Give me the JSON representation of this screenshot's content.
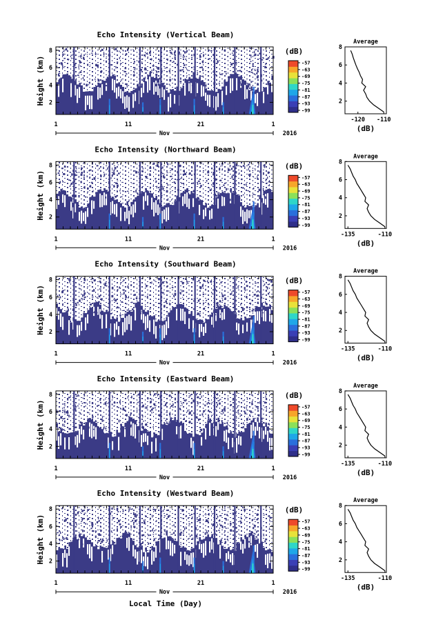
{
  "chart_data": [
    {
      "type": "heatmap",
      "title": "Echo Intensity (Vertical Beam)",
      "ylabel": "Height (km)",
      "month_label": "Nov",
      "year_label": "2016",
      "yticks": [
        "2",
        "4",
        "6",
        "8"
      ],
      "xticks": [
        "1",
        "11",
        "21",
        "1"
      ],
      "colorbar_unit": "(dB)",
      "colorbar_ticks": [
        "-57",
        "-63",
        "-69",
        "-75",
        "-81",
        "-87",
        "-93",
        "-99"
      ],
      "profile": {
        "title": "Average",
        "xlabel": "(dB)",
        "xticks": [
          "-120",
          "-110"
        ],
        "yticks": [
          "2",
          "4",
          "6",
          "8"
        ],
        "xlim": [
          -125,
          -109
        ],
        "ylim": [
          0.6,
          8
        ],
        "heights": [
          0.8,
          1.2,
          1.6,
          2.0,
          2.4,
          2.8,
          3.2,
          3.6,
          4.0,
          4.4,
          4.8,
          5.2,
          5.6,
          6.0,
          6.4,
          6.8,
          7.2,
          7.6
        ],
        "values": [
          -110.0,
          -112.0,
          -114.0,
          -115.5,
          -116.5,
          -117.0,
          -117.8,
          -117.0,
          -118.5,
          -118.2,
          -119.0,
          -119.5,
          -120.2,
          -120.8,
          -121.3,
          -121.8,
          -122.2,
          -122.8
        ]
      }
    },
    {
      "type": "heatmap",
      "title": "Echo Intensity (Northward Beam)",
      "ylabel": "Height (km)",
      "month_label": "Nov",
      "year_label": "2016",
      "yticks": [
        "2",
        "4",
        "6",
        "8"
      ],
      "xticks": [
        "1",
        "11",
        "21",
        "1"
      ],
      "colorbar_unit": "(dB)",
      "colorbar_ticks": [
        "-57",
        "-63",
        "-69",
        "-75",
        "-81",
        "-87",
        "-93",
        "-99"
      ],
      "profile": {
        "title": "Average",
        "xlabel": "(dB)",
        "xticks": [
          "-135",
          "-110"
        ],
        "yticks": [
          "2",
          "4",
          "6",
          "8"
        ],
        "xlim": [
          -137,
          -109
        ],
        "ylim": [
          0.6,
          8
        ],
        "heights": [
          0.8,
          1.2,
          1.6,
          2.0,
          2.4,
          2.8,
          3.2,
          3.6,
          4.0,
          4.4,
          4.8,
          5.2,
          5.6,
          6.0,
          6.4,
          6.8,
          7.2,
          7.6
        ],
        "values": [
          -110.0,
          -113.5,
          -117.0,
          -119.5,
          -121.0,
          -122.0,
          -121.0,
          -123.5,
          -123.0,
          -124.5,
          -126.0,
          -127.5,
          -129.0,
          -130.0,
          -131.5,
          -132.5,
          -133.5,
          -135.0
        ]
      }
    },
    {
      "type": "heatmap",
      "title": "Echo Intensity (Southward Beam)",
      "ylabel": "Height (km)",
      "month_label": "Nov",
      "year_label": "2016",
      "yticks": [
        "2",
        "4",
        "6",
        "8"
      ],
      "xticks": [
        "1",
        "11",
        "21",
        "1"
      ],
      "colorbar_unit": "(dB)",
      "colorbar_ticks": [
        "-57",
        "-63",
        "-69",
        "-75",
        "-81",
        "-87",
        "-93",
        "-99"
      ],
      "profile": {
        "title": "Average",
        "xlabel": "(dB)",
        "xticks": [
          "-135",
          "-110"
        ],
        "yticks": [
          "2",
          "4",
          "6",
          "8"
        ],
        "xlim": [
          -137,
          -109
        ],
        "ylim": [
          0.6,
          8
        ],
        "heights": [
          0.8,
          1.2,
          1.6,
          2.0,
          2.4,
          2.8,
          3.2,
          3.6,
          4.0,
          4.4,
          4.8,
          5.2,
          5.6,
          6.0,
          6.4,
          6.8,
          7.2,
          7.6
        ],
        "values": [
          -110.0,
          -113.5,
          -117.0,
          -119.5,
          -121.0,
          -122.0,
          -121.0,
          -123.5,
          -123.0,
          -124.5,
          -126.0,
          -127.5,
          -129.0,
          -130.0,
          -131.5,
          -132.5,
          -133.5,
          -135.0
        ]
      }
    },
    {
      "type": "heatmap",
      "title": "Echo Intensity (Eastward Beam)",
      "ylabel": "Height (km)",
      "month_label": "Nov",
      "year_label": "2016",
      "yticks": [
        "2",
        "4",
        "6",
        "8"
      ],
      "xticks": [
        "1",
        "11",
        "21",
        "1"
      ],
      "colorbar_unit": "(dB)",
      "colorbar_ticks": [
        "-57",
        "-63",
        "-69",
        "-75",
        "-81",
        "-87",
        "-93",
        "-99"
      ],
      "profile": {
        "title": "Average",
        "xlabel": "(dB)",
        "xticks": [
          "-135",
          "-110"
        ],
        "yticks": [
          "2",
          "4",
          "6",
          "8"
        ],
        "xlim": [
          -137,
          -109
        ],
        "ylim": [
          0.6,
          8
        ],
        "heights": [
          0.8,
          1.2,
          1.6,
          2.0,
          2.4,
          2.8,
          3.2,
          3.6,
          4.0,
          4.4,
          4.8,
          5.2,
          5.6,
          6.0,
          6.4,
          6.8,
          7.2,
          7.6
        ],
        "values": [
          -110.0,
          -113.5,
          -117.0,
          -119.5,
          -121.0,
          -122.0,
          -121.0,
          -123.5,
          -123.0,
          -124.5,
          -126.0,
          -127.5,
          -129.0,
          -130.0,
          -131.5,
          -132.5,
          -133.5,
          -135.0
        ]
      }
    },
    {
      "type": "heatmap",
      "title": "Echo Intensity (Westward Beam)",
      "ylabel": "Height (km)",
      "month_label": "Nov",
      "year_label": "2016",
      "yticks": [
        "2",
        "4",
        "6",
        "8"
      ],
      "xticks": [
        "1",
        "11",
        "21",
        "1"
      ],
      "colorbar_unit": "(dB)",
      "colorbar_ticks": [
        "-57",
        "-63",
        "-69",
        "-75",
        "-81",
        "-87",
        "-93",
        "-99"
      ],
      "profile": {
        "title": "Average",
        "xlabel": "(dB)",
        "xticks": [
          "-135",
          "-110"
        ],
        "yticks": [
          "2",
          "4",
          "6",
          "8"
        ],
        "xlim": [
          -137,
          -109
        ],
        "ylim": [
          0.6,
          8
        ],
        "heights": [
          0.8,
          1.2,
          1.6,
          2.0,
          2.4,
          2.8,
          3.2,
          3.6,
          4.0,
          4.4,
          4.8,
          5.2,
          5.6,
          6.0,
          6.4,
          6.8,
          7.2,
          7.6
        ],
        "values": [
          -110.0,
          -113.5,
          -117.0,
          -119.5,
          -121.0,
          -122.0,
          -121.0,
          -123.5,
          -123.0,
          -124.5,
          -126.0,
          -127.5,
          -129.0,
          -130.0,
          -131.5,
          -132.5,
          -133.5,
          -135.0
        ]
      }
    }
  ],
  "xlabel": "Local Time (Day)",
  "colormap": [
    "#2f2f8a",
    "#3a3fb5",
    "#2a6fdc",
    "#1fa7e8",
    "#2fd6c8",
    "#8be05a",
    "#e8e23a",
    "#f7a62a",
    "#ee4a2a"
  ],
  "background_color": "#3b3b86",
  "axis_ylim": [
    0.6,
    8.4
  ],
  "axis_ytick_values": [
    2,
    4,
    6,
    8
  ],
  "xtick_days": [
    1,
    11,
    21,
    31
  ],
  "x_range_days": [
    1,
    31
  ]
}
